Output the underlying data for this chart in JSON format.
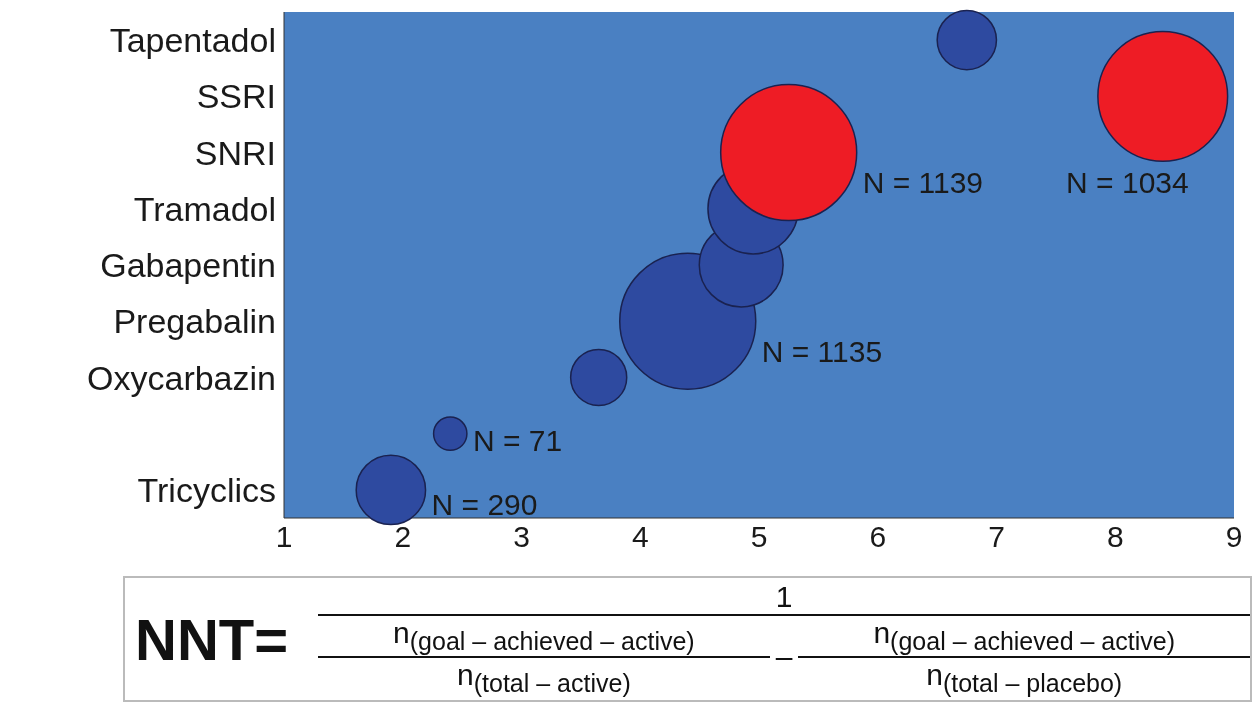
{
  "chart_data": {
    "type": "bubble",
    "categories": [
      "Tapentadol",
      "SSRI",
      "SNRI",
      "Tramadol",
      "Gabapentin",
      "Pregabalin",
      "Oxycarbazin",
      null,
      "Tricyclics"
    ],
    "orientation": "horizontal",
    "values": [
      6.75,
      8.4,
      5.25,
      4.95,
      4.85,
      4.4,
      3.65,
      2.4,
      1.9
    ],
    "sizes": [
      0.19,
      0.91,
      1,
      0.44,
      0.38,
      1,
      0.17,
      0.06,
      0.26
    ],
    "colors": [
      "#2e4aa0",
      "#ee1c25",
      "#ee1c25",
      "#2e4aa0",
      "#2e4aa0",
      "#2e4aa0",
      "#2e4aa0",
      "#2e4aa0",
      "#2e4aa0"
    ],
    "xlim": [
      1,
      9
    ],
    "xticks": [
      1,
      2,
      3,
      4,
      5,
      6,
      7,
      8,
      9
    ],
    "grid": false,
    "legend": false,
    "annotations": [
      {
        "text": "N = 1034",
        "x": 8.4,
        "y": "SSRI"
      },
      {
        "text": "N = 1139",
        "x": 5.25,
        "y": "SNRI"
      },
      {
        "text": "N = 1135",
        "x": 4.4,
        "y": "Pregabalin"
      },
      {
        "text": "N = 290",
        "x": 1.9,
        "y": "Tricyclics"
      },
      "N = 71",
      "NNT=",
      "1",
      "n$_{(goal – achieved – active)}$",
      "n$_{(total – active)}$",
      "–",
      "n$_{(goal – achieved – active)}$",
      "n$_{(total – placebo)}$"
    ]
  }
}
